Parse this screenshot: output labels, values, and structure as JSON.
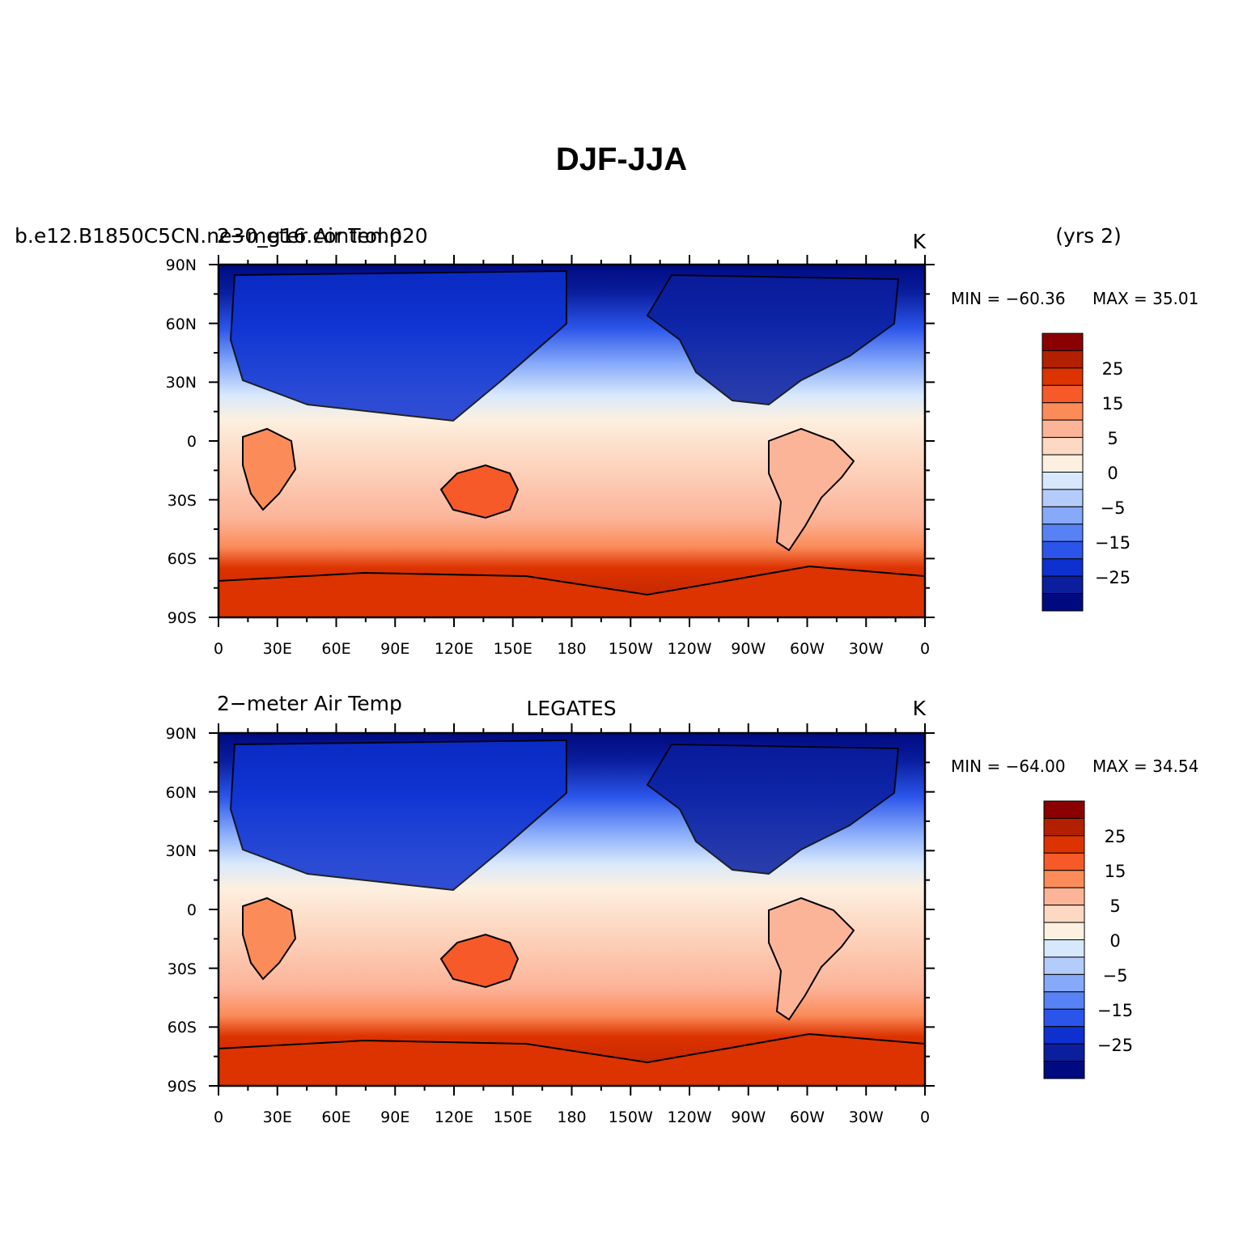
{
  "main_title": "DJF-JJA",
  "colorbar_labels": [
    "25",
    "15",
    "5",
    "0",
    "−5",
    "−15",
    "−25"
  ],
  "colorbar_colors": [
    "#8b0000",
    "#b22000",
    "#dd3300",
    "#f55a28",
    "#fb8c5a",
    "#fcb499",
    "#fdd8c2",
    "#fdf0e0",
    "#d8e8fc",
    "#b4ccfc",
    "#86a9fa",
    "#5682f5",
    "#2b55ea",
    "#0d30cf",
    "#0a1e9e",
    "#000a80"
  ],
  "x_ticks": [
    "0",
    "30E",
    "60E",
    "90E",
    "120E",
    "150E",
    "180",
    "150W",
    "120W",
    "90W",
    "60W",
    "30W",
    "0"
  ],
  "y_ticks": [
    "90N",
    "60N",
    "30N",
    "0",
    "30S",
    "60S",
    "90S"
  ],
  "panels": [
    {
      "left_title": "b.e12.B1850C5CN.ne30_g16.control.020",
      "left_title_overlay": "2−meter Air Temp",
      "center_title": "",
      "right_title": "K",
      "extra_label": "(yrs 2)",
      "min_label": "MIN = −60.36",
      "max_label": "MAX =   35.01"
    },
    {
      "left_title": "2−meter Air Temp",
      "left_title_overlay": "",
      "center_title": "LEGATES",
      "right_title": "K",
      "extra_label": "",
      "min_label": "MIN = −64.00",
      "max_label": "MAX =   34.54"
    }
  ]
}
